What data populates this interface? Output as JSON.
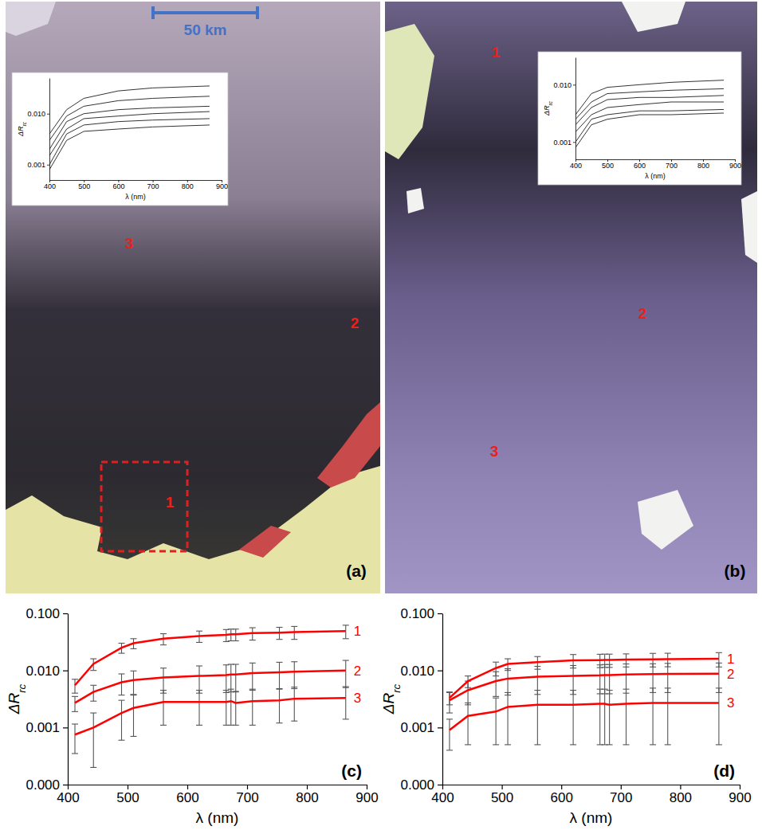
{
  "chart_data": [
    {
      "type": "image",
      "panel_label": "(a)",
      "scale_bar_label": "50 km",
      "annotations": [
        "1",
        "2",
        "3"
      ]
    },
    {
      "type": "image",
      "panel_label": "(b)",
      "annotations": [
        "1",
        "2",
        "3"
      ]
    },
    {
      "type": "line",
      "xlabel": "λ (nm)",
      "ylabel": "ΔRrc",
      "log": "y",
      "x": [
        400,
        450,
        500,
        600,
        700,
        865
      ],
      "xlim": [
        400,
        900
      ],
      "xticks": [
        400,
        500,
        600,
        700,
        800,
        900
      ],
      "ylim": [
        0.0005,
        0.05
      ],
      "yticks": [
        0.001,
        {
          "value": 0.01,
          "label": "0.010"
        }
      ],
      "series": [
        {
          "color": "#000000",
          "values": [
            0.004,
            0.012,
            0.02,
            0.028,
            0.032,
            0.035
          ]
        },
        {
          "color": "#000000",
          "values": [
            0.003,
            0.009,
            0.014,
            0.018,
            0.02,
            0.022
          ]
        },
        {
          "color": "#000000",
          "values": [
            0.002,
            0.007,
            0.01,
            0.012,
            0.013,
            0.014
          ]
        },
        {
          "color": "#000000",
          "values": [
            0.0015,
            0.005,
            0.008,
            0.009,
            0.01,
            0.011
          ]
        },
        {
          "color": "#000000",
          "values": [
            0.001,
            0.004,
            0.006,
            0.007,
            0.0075,
            0.008
          ]
        },
        {
          "color": "#000000",
          "values": [
            0.0008,
            0.003,
            0.0045,
            0.005,
            0.0055,
            0.006
          ]
        }
      ]
    },
    {
      "type": "line",
      "xlabel": "λ (nm)",
      "ylabel": "ΔRrc",
      "log": "y",
      "x": [
        400,
        450,
        500,
        600,
        700,
        865
      ],
      "xlim": [
        400,
        900
      ],
      "xticks": [
        400,
        500,
        600,
        700,
        800,
        900
      ],
      "ylim": [
        0.0005,
        0.03
      ],
      "yticks": [
        0.001,
        {
          "value": 0.01,
          "label": "0.010"
        }
      ],
      "series": [
        {
          "color": "#000000",
          "values": [
            0.003,
            0.007,
            0.009,
            0.01,
            0.011,
            0.012
          ]
        },
        {
          "color": "#000000",
          "values": [
            0.0025,
            0.005,
            0.007,
            0.0075,
            0.008,
            0.0085
          ]
        },
        {
          "color": "#000000",
          "values": [
            0.002,
            0.004,
            0.0055,
            0.006,
            0.006,
            0.0065
          ]
        },
        {
          "color": "#000000",
          "values": [
            0.0015,
            0.003,
            0.004,
            0.0045,
            0.005,
            0.005
          ]
        },
        {
          "color": "#000000",
          "values": [
            0.001,
            0.0025,
            0.003,
            0.0035,
            0.0035,
            0.0037
          ]
        },
        {
          "color": "#000000",
          "values": [
            0.0008,
            0.002,
            0.0025,
            0.003,
            0.003,
            0.0032
          ]
        }
      ]
    },
    {
      "type": "line",
      "panel_label": "(c)",
      "xlabel": "λ (nm)",
      "ylabel": "ΔRrc",
      "log": "y",
      "x": [
        412,
        443,
        490,
        510,
        560,
        620,
        665,
        673,
        681,
        709,
        754,
        779,
        865
      ],
      "xlim": [
        400,
        900
      ],
      "xticks": [
        400,
        500,
        600,
        700,
        800,
        900
      ],
      "ylim": [
        0.0001,
        0.1
      ],
      "yticks": [
        {
          "value": 0.0001,
          "label": "0.000"
        },
        0.001,
        {
          "value": 0.01,
          "label": "0.010"
        },
        {
          "value": 0.1,
          "label": "0.100"
        }
      ],
      "series": [
        {
          "name": "1",
          "color": "#ff0000",
          "values": [
            0.0055,
            0.013,
            0.025,
            0.03,
            0.036,
            0.04,
            0.042,
            0.043,
            0.043,
            0.045,
            0.046,
            0.047,
            0.049
          ],
          "errors": [
            0.0015,
            0.003,
            0.005,
            0.006,
            0.008,
            0.009,
            0.01,
            0.01,
            0.01,
            0.011,
            0.011,
            0.012,
            0.013
          ]
        },
        {
          "name": "2",
          "color": "#ff0000",
          "values": [
            0.0027,
            0.0042,
            0.0062,
            0.0068,
            0.0075,
            0.008,
            0.0083,
            0.0085,
            0.0085,
            0.009,
            0.0093,
            0.0095,
            0.01
          ],
          "errors": [
            0.0008,
            0.0013,
            0.0025,
            0.003,
            0.0035,
            0.004,
            0.0042,
            0.0043,
            0.0043,
            0.0045,
            0.0046,
            0.0047,
            0.005
          ]
        },
        {
          "name": "3",
          "color": "#ff0000",
          "values": [
            0.00075,
            0.001,
            0.0018,
            0.0022,
            0.0028,
            0.0028,
            0.0028,
            0.0029,
            0.0027,
            0.0029,
            0.003,
            0.0032,
            0.0033
          ],
          "errors": [
            0.0004,
            0.0008,
            0.0012,
            0.0015,
            0.0017,
            0.0017,
            0.0017,
            0.0018,
            0.0016,
            0.0018,
            0.0018,
            0.0019,
            0.0019
          ]
        }
      ]
    },
    {
      "type": "line",
      "panel_label": "(d)",
      "xlabel": "λ (nm)",
      "ylabel": "ΔRrc",
      "log": "y",
      "x": [
        412,
        443,
        490,
        510,
        560,
        620,
        665,
        673,
        681,
        709,
        754,
        779,
        865
      ],
      "xlim": [
        400,
        900
      ],
      "xticks": [
        400,
        500,
        600,
        700,
        800,
        900
      ],
      "ylim": [
        0.0001,
        0.1
      ],
      "yticks": [
        {
          "value": 0.0001,
          "label": "0.000"
        },
        0.001,
        {
          "value": 0.01,
          "label": "0.010"
        },
        {
          "value": 0.1,
          "label": "0.100"
        }
      ],
      "series": [
        {
          "name": "1",
          "color": "#ff0000",
          "values": [
            0.0033,
            0.0065,
            0.011,
            0.013,
            0.014,
            0.015,
            0.0152,
            0.0153,
            0.0153,
            0.0155,
            0.0157,
            0.0158,
            0.016
          ],
          "errors": [
            0.0008,
            0.0015,
            0.003,
            0.003,
            0.0035,
            0.004,
            0.004,
            0.004,
            0.004,
            0.004,
            0.0042,
            0.0042,
            0.0045
          ]
        },
        {
          "name": "2",
          "color": "#ff0000",
          "values": [
            0.003,
            0.0045,
            0.0065,
            0.0072,
            0.0078,
            0.008,
            0.0082,
            0.0083,
            0.0083,
            0.0085,
            0.0086,
            0.0087,
            0.0088
          ],
          "errors": [
            0.0012,
            0.002,
            0.003,
            0.0035,
            0.004,
            0.0042,
            0.0043,
            0.0044,
            0.0044,
            0.0045,
            0.0045,
            0.0046,
            0.0047
          ]
        },
        {
          "name": "3",
          "color": "#ff0000",
          "values": [
            0.0009,
            0.0016,
            0.0019,
            0.0023,
            0.0025,
            0.0025,
            0.0026,
            0.0026,
            0.0025,
            0.0026,
            0.0027,
            0.0027,
            0.0027
          ],
          "errors": [
            0.0005,
            0.0011,
            0.0014,
            0.0018,
            0.002,
            0.002,
            0.0021,
            0.0021,
            0.002,
            0.0021,
            0.0022,
            0.0022,
            0.0022
          ]
        }
      ]
    }
  ]
}
